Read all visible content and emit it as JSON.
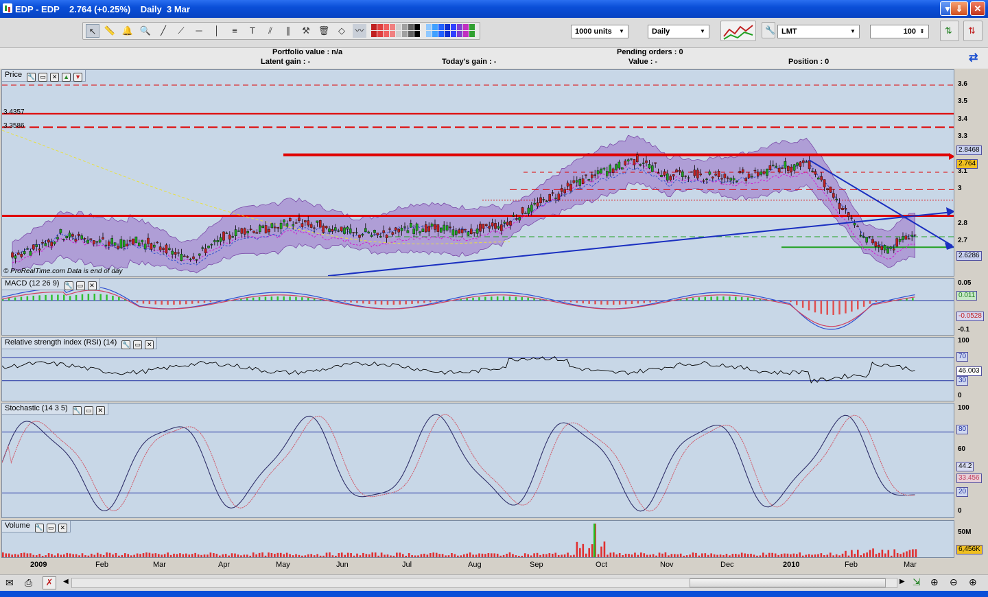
{
  "window": {
    "title": "EDP - EDP    2.764 (+0.25%)    Daily  3 Mar"
  },
  "toolbar": {
    "units_select": "1000 units",
    "period_select": "Daily",
    "order_type_select": "LMT",
    "quantity_value": "100"
  },
  "info": {
    "portfolio_value": "Portfolio value : n/a",
    "latent_gain": "Latent gain : -",
    "todays_gain": "Today's gain : -",
    "pending_orders": "Pending orders : 0",
    "value": "Value : -",
    "position": "Position : 0"
  },
  "panels": {
    "price": {
      "label": "Price",
      "level_labels": [
        "3.4357",
        "3.3586"
      ],
      "credit": "© ProRealTime.com  Data is end of day",
      "axis_ticks": [
        "3.6",
        "3.5",
        "3.4",
        "3.3",
        "3.2",
        "3.1",
        "3",
        "2.8",
        "2.7",
        "2.6"
      ],
      "tags": {
        "upper": "2.8468",
        "last": "2.764",
        "lower": "2.6286"
      }
    },
    "macd": {
      "label": "MACD (12 26 9)",
      "axis_ticks": [
        "0.05",
        "-0.1"
      ],
      "tags": {
        "hist": "0.011",
        "signal": "-0.0528"
      }
    },
    "rsi": {
      "label": "Relative strength index (RSI) (14)",
      "axis_ticks": [
        "100",
        "0"
      ],
      "tags": {
        "upper": "70",
        "value": "46.003",
        "lower": "30"
      }
    },
    "stochastic": {
      "label": "Stochastic (14 3 5)",
      "axis_ticks": [
        "100",
        "60",
        "0"
      ],
      "tags": {
        "upper": "80",
        "k": "44.2",
        "d": "33.456",
        "lower": "20"
      }
    },
    "volume": {
      "label": "Volume",
      "axis_ticks": [
        "50M"
      ],
      "tags": {
        "value": "6,456K"
      }
    }
  },
  "dates": [
    "2009",
    "Feb",
    "Mar",
    "Apr",
    "May",
    "Jun",
    "Jul",
    "Aug",
    "Sep",
    "Oct",
    "Nov",
    "Dec",
    "2010",
    "Feb",
    "Mar"
  ],
  "colors": {
    "panel_bg": "#c8d7e7",
    "bollinger": "#9b6fc8",
    "support": "#e00000",
    "trend": "#1a2fc0"
  }
}
